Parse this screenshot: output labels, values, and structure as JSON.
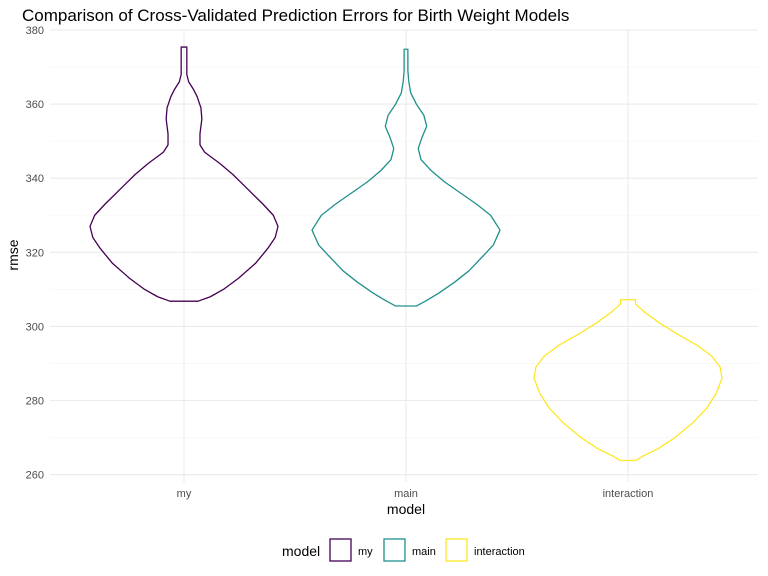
{
  "chart_data": {
    "type": "violin",
    "title": "Comparison of Cross-Validated Prediction Errors for Birth Weight Models",
    "xlabel": "model",
    "ylabel": "rmse",
    "categories": [
      "my",
      "main",
      "interaction"
    ],
    "ylim": [
      258,
      380
    ],
    "yticks": [
      260,
      280,
      300,
      320,
      340,
      360,
      380
    ],
    "grid": true,
    "legend": {
      "title": "model",
      "position": "bottom",
      "entries": [
        "my",
        "main",
        "interaction"
      ]
    },
    "colors": {
      "my": "#440154",
      "main": "#21908C",
      "interaction": "#FDE725",
      "grid_major": "#ebebeb",
      "grid_minor": "#f5f5f5"
    },
    "series": [
      {
        "category": "my",
        "min": 306.8,
        "max": 375.4,
        "density_profile": [
          [
            306.8,
            0.15
          ],
          [
            308,
            0.28
          ],
          [
            310,
            0.42
          ],
          [
            313,
            0.58
          ],
          [
            317,
            0.76
          ],
          [
            321,
            0.89
          ],
          [
            324,
            0.97
          ],
          [
            327,
            1.0
          ],
          [
            330,
            0.95
          ],
          [
            333,
            0.84
          ],
          [
            337,
            0.68
          ],
          [
            341,
            0.52
          ],
          [
            344,
            0.38
          ],
          [
            347,
            0.22
          ],
          [
            349,
            0.17
          ],
          [
            352,
            0.17
          ],
          [
            356,
            0.19
          ],
          [
            359,
            0.18
          ],
          [
            362,
            0.14
          ],
          [
            364,
            0.1
          ],
          [
            366,
            0.05
          ],
          [
            368,
            0.03
          ],
          [
            371,
            0.03
          ],
          [
            373,
            0.03
          ],
          [
            375.4,
            0.03
          ]
        ]
      },
      {
        "category": "main",
        "min": 305.5,
        "max": 374.8,
        "density_profile": [
          [
            305.5,
            0.11
          ],
          [
            307,
            0.22
          ],
          [
            309,
            0.35
          ],
          [
            312,
            0.52
          ],
          [
            315,
            0.67
          ],
          [
            319,
            0.82
          ],
          [
            322,
            0.93
          ],
          [
            326,
            1.0
          ],
          [
            330,
            0.9
          ],
          [
            333,
            0.75
          ],
          [
            336,
            0.58
          ],
          [
            339,
            0.41
          ],
          [
            342,
            0.27
          ],
          [
            345,
            0.16
          ],
          [
            348,
            0.13
          ],
          [
            351,
            0.17
          ],
          [
            354,
            0.22
          ],
          [
            357,
            0.19
          ],
          [
            360,
            0.11
          ],
          [
            363,
            0.05
          ],
          [
            366,
            0.03
          ],
          [
            369,
            0.02
          ],
          [
            372,
            0.02
          ],
          [
            374.8,
            0.02
          ]
        ]
      },
      {
        "category": "interaction",
        "min": 263.8,
        "max": 307.2,
        "density_profile": [
          [
            263.8,
            0.08
          ],
          [
            265,
            0.16
          ],
          [
            267,
            0.32
          ],
          [
            270,
            0.5
          ],
          [
            274,
            0.69
          ],
          [
            278,
            0.84
          ],
          [
            282,
            0.94
          ],
          [
            286,
            1.0
          ],
          [
            289,
            0.98
          ],
          [
            292,
            0.89
          ],
          [
            295,
            0.73
          ],
          [
            298,
            0.52
          ],
          [
            301,
            0.33
          ],
          [
            304,
            0.17
          ],
          [
            306,
            0.08
          ],
          [
            307.2,
            0.08
          ]
        ]
      }
    ]
  }
}
